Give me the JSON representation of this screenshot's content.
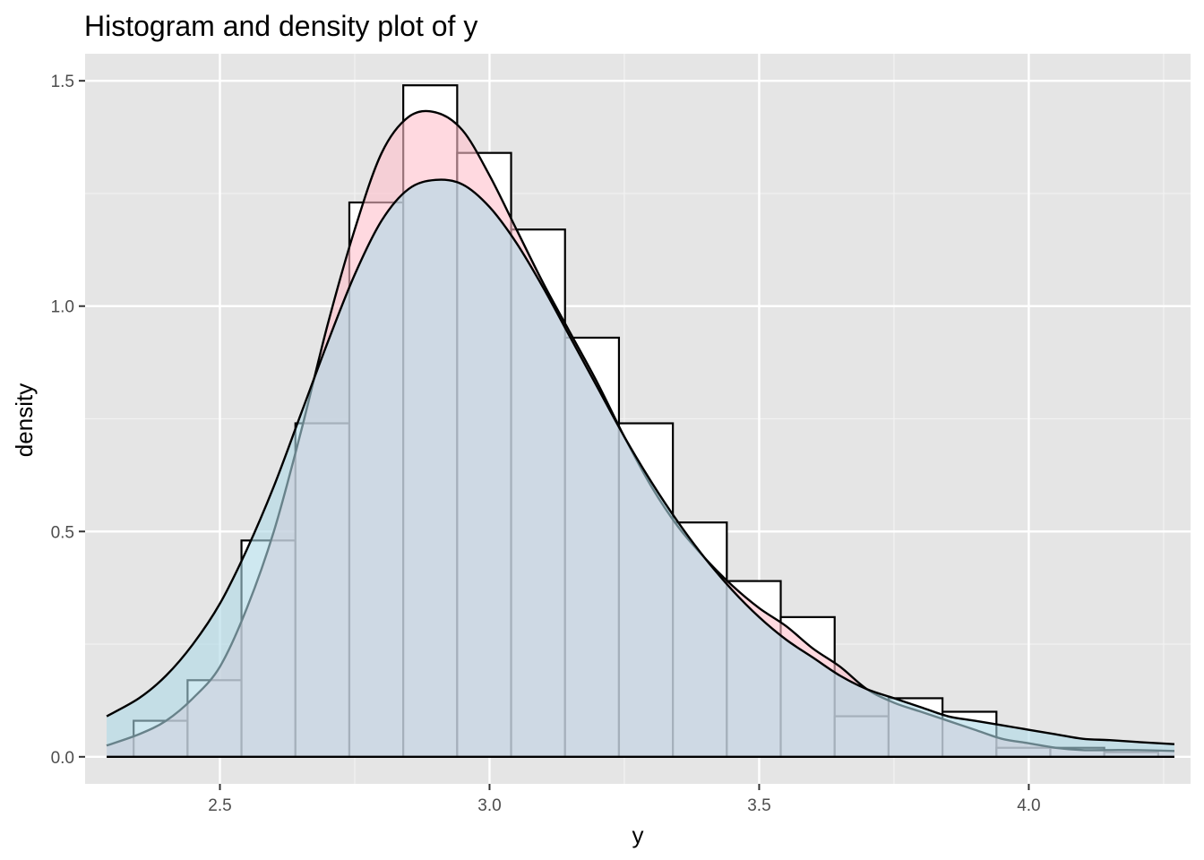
{
  "chart_data": {
    "type": "bar",
    "title": "Histogram and density plot of y",
    "xlabel": "y",
    "ylabel": "density",
    "xlim": [
      2.25,
      4.3
    ],
    "ylim": [
      -0.06,
      1.56
    ],
    "x_ticks": [
      2.5,
      3.0,
      3.5,
      4.0
    ],
    "x_tick_labels": [
      "2.5",
      "3.0",
      "3.5",
      "4.0"
    ],
    "y_ticks": [
      0.0,
      0.5,
      1.0,
      1.5
    ],
    "y_tick_labels": [
      "0.0",
      "0.5",
      "1.0",
      "1.5"
    ],
    "grid": true,
    "legend": "none",
    "colors": {
      "panel": "#e5e5e5",
      "grid_major": "#ffffff",
      "grid_minor": "#f2f2f2",
      "hist_fill": "#ffffff",
      "hist_outline": "#000000",
      "kde_fill": "#ffc0cb",
      "fitted_fill": "#add8e6",
      "curve_line": "#000000"
    },
    "histogram": {
      "bin_width": 0.1,
      "bin_starts": [
        2.34,
        2.44,
        2.54,
        2.64,
        2.74,
        2.84,
        2.94,
        3.04,
        3.14,
        3.24,
        3.34,
        3.44,
        3.54,
        3.64,
        3.74,
        3.84,
        3.94,
        4.04,
        4.14
      ],
      "values": [
        0.08,
        0.17,
        0.48,
        0.74,
        1.23,
        1.49,
        1.34,
        1.17,
        0.93,
        0.74,
        0.52,
        0.39,
        0.31,
        0.09,
        0.13,
        0.1,
        0.02,
        0.02,
        0.01
      ]
    },
    "series": [
      {
        "fill": "#ffc0cb",
        "x": [
          2.29,
          2.35,
          2.4,
          2.45,
          2.5,
          2.55,
          2.6,
          2.65,
          2.7,
          2.75,
          2.8,
          2.85,
          2.9,
          2.95,
          3.0,
          3.05,
          3.1,
          3.15,
          3.2,
          3.25,
          3.3,
          3.35,
          3.4,
          3.45,
          3.5,
          3.55,
          3.6,
          3.65,
          3.7,
          3.75,
          3.8,
          3.85,
          3.9,
          3.95,
          4.0,
          4.05,
          4.1,
          4.15,
          4.2,
          4.27
        ],
        "values": [
          0.025,
          0.05,
          0.08,
          0.13,
          0.2,
          0.33,
          0.5,
          0.72,
          0.96,
          1.17,
          1.34,
          1.42,
          1.43,
          1.39,
          1.29,
          1.17,
          1.05,
          0.94,
          0.83,
          0.71,
          0.6,
          0.51,
          0.44,
          0.38,
          0.33,
          0.29,
          0.24,
          0.2,
          0.15,
          0.12,
          0.1,
          0.08,
          0.06,
          0.04,
          0.03,
          0.02,
          0.015,
          0.015,
          0.015,
          0.013
        ]
      },
      {
        "fill": "#add8e6",
        "x": [
          2.29,
          2.35,
          2.4,
          2.45,
          2.5,
          2.55,
          2.6,
          2.65,
          2.7,
          2.75,
          2.8,
          2.85,
          2.9,
          2.95,
          3.0,
          3.05,
          3.1,
          3.15,
          3.2,
          3.25,
          3.3,
          3.35,
          3.4,
          3.45,
          3.5,
          3.55,
          3.6,
          3.65,
          3.7,
          3.75,
          3.8,
          3.85,
          3.9,
          3.95,
          4.0,
          4.05,
          4.1,
          4.15,
          4.2,
          4.27
        ],
        "values": [
          0.09,
          0.13,
          0.18,
          0.25,
          0.34,
          0.46,
          0.6,
          0.76,
          0.92,
          1.07,
          1.19,
          1.26,
          1.28,
          1.27,
          1.22,
          1.14,
          1.04,
          0.93,
          0.82,
          0.71,
          0.61,
          0.52,
          0.44,
          0.37,
          0.31,
          0.26,
          0.22,
          0.18,
          0.15,
          0.13,
          0.11,
          0.09,
          0.08,
          0.07,
          0.06,
          0.05,
          0.04,
          0.037,
          0.033,
          0.028
        ]
      }
    ]
  }
}
